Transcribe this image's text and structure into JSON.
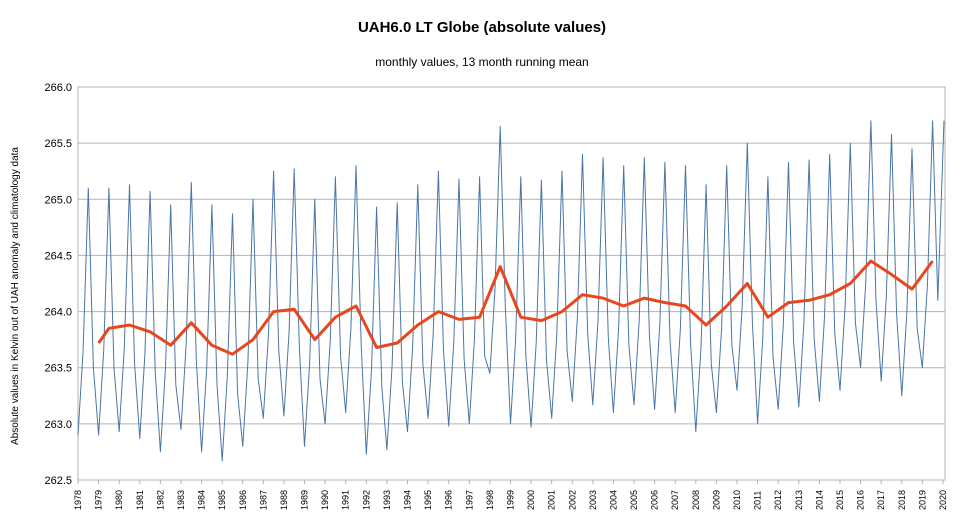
{
  "chart_data": {
    "type": "line",
    "title": "UAH6.0 LT Globe (absolute values)",
    "subtitle": "monthly values, 13 month running mean",
    "y_label": "Absolute values in Kelvin out of UAH anomaly and climatology data",
    "xlim": [
      1978,
      2020.1
    ],
    "ylim": [
      262.5,
      266
    ],
    "xticks": [
      1978,
      1979,
      1980,
      1981,
      1982,
      1983,
      1984,
      1985,
      1986,
      1987,
      1988,
      1989,
      1990,
      1991,
      1992,
      1993,
      1994,
      1995,
      1996,
      1997,
      1998,
      1999,
      2000,
      2001,
      2002,
      2003,
      2004,
      2005,
      2006,
      2007,
      2008,
      2009,
      2010,
      2011,
      2012,
      2013,
      2014,
      2015,
      2016,
      2017,
      2018,
      2019,
      2020
    ],
    "yticks": [
      262.5,
      {
        "value": 263,
        "label": "263.0"
      },
      263.5,
      {
        "value": 264,
        "label": "264.0"
      },
      264.5,
      {
        "value": 265,
        "label": "265.0"
      },
      265.5,
      {
        "value": 266,
        "label": "266.0"
      }
    ],
    "grid": true,
    "series": [
      {
        "color": "#4a76a8",
        "width": 1,
        "x": [
          1978,
          1978.25,
          1978.5,
          1978.75,
          1979,
          1979.25,
          1979.5,
          1979.75,
          1980,
          1980.25,
          1980.5,
          1980.75,
          1981,
          1981.25,
          1981.5,
          1981.75,
          1982,
          1982.25,
          1982.5,
          1982.75,
          1983,
          1983.25,
          1983.5,
          1983.75,
          1984,
          1984.25,
          1984.5,
          1984.75,
          1985,
          1985.25,
          1985.5,
          1985.75,
          1986,
          1986.25,
          1986.5,
          1986.75,
          1987,
          1987.25,
          1987.5,
          1987.75,
          1988,
          1988.25,
          1988.5,
          1988.75,
          1989,
          1989.25,
          1989.5,
          1989.75,
          1990,
          1990.25,
          1990.5,
          1990.75,
          1991,
          1991.25,
          1991.5,
          1991.75,
          1992,
          1992.25,
          1992.5,
          1992.75,
          1993,
          1993.25,
          1993.5,
          1993.75,
          1994,
          1994.25,
          1994.5,
          1994.75,
          1995,
          1995.25,
          1995.5,
          1995.75,
          1996,
          1996.25,
          1996.5,
          1996.75,
          1997,
          1997.25,
          1997.5,
          1997.75,
          1998,
          1998.25,
          1998.5,
          1998.75,
          1999,
          1999.25,
          1999.5,
          1999.75,
          2000,
          2000.25,
          2000.5,
          2000.75,
          2001,
          2001.25,
          2001.5,
          2001.75,
          2002,
          2002.25,
          2002.5,
          2002.75,
          2003,
          2003.25,
          2003.5,
          2003.75,
          2004,
          2004.25,
          2004.5,
          2004.75,
          2005,
          2005.25,
          2005.5,
          2005.75,
          2006,
          2006.25,
          2006.5,
          2006.75,
          2007,
          2007.25,
          2007.5,
          2007.75,
          2008,
          2008.25,
          2008.5,
          2008.75,
          2009,
          2009.25,
          2009.5,
          2009.75,
          2010,
          2010.25,
          2010.5,
          2010.75,
          2011,
          2011.25,
          2011.5,
          2011.75,
          2012,
          2012.25,
          2012.5,
          2012.75,
          2013,
          2013.25,
          2013.5,
          2013.75,
          2014,
          2014.25,
          2014.5,
          2014.75,
          2015,
          2015.25,
          2015.5,
          2015.75,
          2016,
          2016.25,
          2016.5,
          2016.75,
          2017,
          2017.25,
          2017.5,
          2017.75,
          2018,
          2018.25,
          2018.5,
          2018.75,
          2019,
          2019.25,
          2019.5,
          2019.75,
          2020.05
        ],
        "values": [
          262.9,
          263.65,
          265.1,
          263.5,
          262.9,
          263.65,
          265.1,
          263.5,
          262.93,
          263.68,
          265.13,
          263.53,
          262.87,
          263.62,
          265.07,
          263.47,
          262.75,
          263.5,
          264.95,
          263.35,
          262.95,
          263.7,
          265.15,
          263.55,
          262.75,
          263.5,
          264.95,
          263.35,
          262.67,
          263.42,
          264.87,
          263.27,
          262.8,
          263.55,
          265.0,
          263.4,
          263.05,
          263.8,
          265.25,
          263.65,
          263.07,
          263.82,
          265.27,
          263.67,
          262.8,
          263.55,
          265.0,
          263.4,
          263.0,
          263.75,
          265.2,
          263.6,
          263.1,
          263.85,
          265.3,
          263.7,
          262.73,
          263.48,
          264.93,
          263.33,
          262.77,
          263.52,
          264.97,
          263.37,
          262.93,
          263.68,
          265.13,
          263.53,
          263.05,
          263.8,
          265.25,
          263.65,
          262.98,
          263.73,
          265.18,
          263.58,
          263.0,
          263.75,
          265.2,
          263.6,
          263.45,
          264.2,
          265.65,
          264.05,
          263.0,
          263.75,
          265.2,
          263.6,
          262.97,
          263.72,
          265.17,
          263.57,
          263.05,
          263.8,
          265.25,
          263.65,
          263.2,
          263.95,
          265.4,
          263.8,
          263.17,
          263.92,
          265.37,
          263.77,
          263.1,
          263.85,
          265.3,
          263.7,
          263.17,
          263.92,
          265.37,
          263.77,
          263.13,
          263.88,
          265.33,
          263.73,
          263.1,
          263.85,
          265.3,
          263.7,
          262.93,
          263.68,
          265.13,
          263.53,
          263.1,
          263.85,
          265.3,
          263.7,
          263.3,
          264.05,
          265.5,
          263.9,
          263.0,
          263.75,
          265.2,
          263.6,
          263.13,
          263.88,
          265.33,
          263.73,
          263.15,
          263.9,
          265.35,
          263.75,
          263.2,
          263.95,
          265.4,
          263.8,
          263.3,
          264.05,
          265.5,
          263.9,
          263.5,
          264.25,
          265.7,
          264.1,
          263.38,
          264.13,
          265.58,
          263.98,
          263.25,
          264.0,
          265.45,
          263.85,
          263.5,
          264.25,
          265.7,
          264.1,
          265.7
        ]
      },
      {
        "color": "#e8471e",
        "width": 3,
        "x": [
          1979,
          1979.5,
          1980.5,
          1981.5,
          1982.5,
          1983.5,
          1984.5,
          1985.5,
          1986.5,
          1987.5,
          1988.5,
          1989.5,
          1990.5,
          1991.5,
          1992.5,
          1993.5,
          1994.5,
          1995.5,
          1996.5,
          1997.5,
          1998.5,
          1999.5,
          2000.5,
          2001.5,
          2002.5,
          2003.5,
          2004.5,
          2005.5,
          2006.5,
          2007.5,
          2008.5,
          2009.5,
          2010.5,
          2011.5,
          2012.5,
          2013.5,
          2014.5,
          2015.5,
          2016.5,
          2017.5,
          2018.5,
          2019.5
        ],
        "values": [
          263.72,
          263.85,
          263.88,
          263.82,
          263.7,
          263.9,
          263.7,
          263.62,
          263.75,
          264.0,
          264.02,
          263.75,
          263.95,
          264.05,
          263.68,
          263.72,
          263.88,
          264.0,
          263.93,
          263.95,
          264.4,
          263.95,
          263.92,
          264.0,
          264.15,
          264.12,
          264.05,
          264.12,
          264.08,
          264.05,
          263.88,
          264.05,
          264.25,
          263.95,
          264.08,
          264.1,
          264.15,
          264.25,
          264.45,
          264.33,
          264.2,
          264.45
        ]
      }
    ]
  }
}
